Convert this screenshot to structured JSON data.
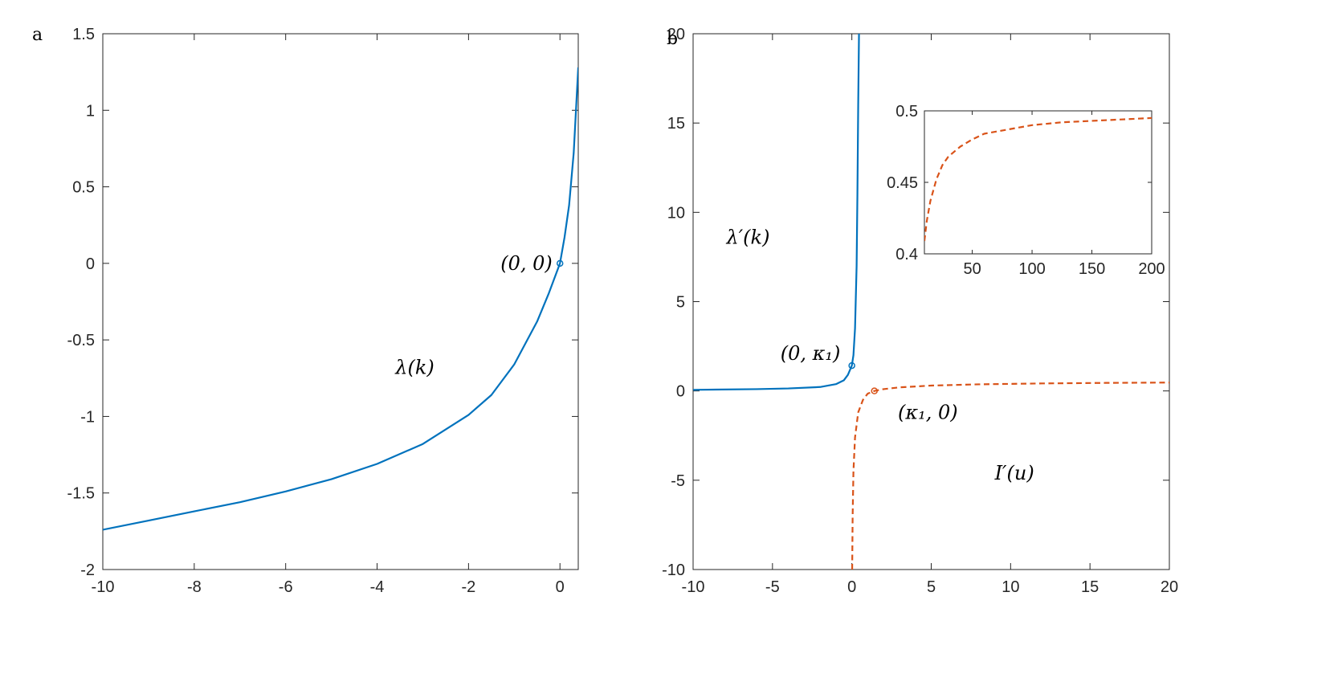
{
  "colors": {
    "blue": "#0072bd",
    "red": "#d95319",
    "axis": "#262626"
  },
  "chart_data": [
    {
      "panel": "a",
      "type": "line",
      "xlim": [
        -10,
        0.4
      ],
      "ylim": [
        -2,
        1.5
      ],
      "xticks": [
        -10,
        -8,
        -6,
        -4,
        -2,
        0
      ],
      "yticks": [
        -2,
        -1.5,
        -1,
        -0.5,
        0,
        0.5,
        1,
        1.5
      ],
      "series": [
        {
          "style": "solid",
          "color": "#0072bd",
          "x": [
            -10,
            -9,
            -8,
            -7,
            -6,
            -5,
            -4,
            -3,
            -2,
            -1.5,
            -1,
            -0.5,
            -0.25,
            0,
            0.1,
            0.2,
            0.3,
            0.4
          ],
          "y": [
            -1.74,
            -1.68,
            -1.62,
            -1.56,
            -1.49,
            -1.41,
            -1.31,
            -1.18,
            -0.99,
            -0.86,
            -0.66,
            -0.38,
            -0.2,
            0,
            0.17,
            0.38,
            0.72,
            1.28
          ]
        }
      ],
      "markers": [
        {
          "x": 0,
          "y": 0,
          "color": "#0072bd"
        }
      ],
      "annotations": [
        {
          "text": "(0, 0)",
          "x": -1.3,
          "y": 0
        },
        {
          "text": "λ(k)",
          "x": -3.6,
          "y": -0.68
        }
      ]
    },
    {
      "panel": "b",
      "type": "line",
      "xlim": [
        -10,
        20
      ],
      "ylim": [
        -10,
        20
      ],
      "xticks": [
        -10,
        -5,
        0,
        5,
        10,
        15,
        20
      ],
      "yticks": [
        -10,
        -5,
        0,
        5,
        10,
        15,
        20
      ],
      "series": [
        {
          "style": "solid",
          "color": "#0072bd",
          "x": [
            -10,
            -6,
            -4,
            -2,
            -1,
            -0.5,
            -0.25,
            0,
            0.1,
            0.2,
            0.3,
            0.35,
            0.4,
            0.45
          ],
          "y": [
            0.06,
            0.1,
            0.14,
            0.22,
            0.38,
            0.6,
            0.9,
            1.42,
            2.0,
            3.5,
            7,
            11,
            16,
            20
          ]
        },
        {
          "style": "dashed",
          "color": "#d95319",
          "x": [
            0.02,
            0.05,
            0.1,
            0.2,
            0.4,
            0.7,
            1.0,
            1.42,
            2,
            3,
            5,
            8,
            12,
            16,
            20
          ],
          "y": [
            -10,
            -7,
            -4.5,
            -2.6,
            -1.2,
            -0.5,
            -0.15,
            0,
            0.1,
            0.2,
            0.3,
            0.37,
            0.42,
            0.45,
            0.47
          ]
        }
      ],
      "markers": [
        {
          "x": 0,
          "y": 1.42,
          "color": "#0072bd"
        },
        {
          "x": 1.42,
          "y": 0,
          "color": "#d95319"
        }
      ],
      "annotations": [
        {
          "text": "λ′(k)",
          "x": -7.9,
          "y": 8.6
        },
        {
          "text": "(0, κ₁)",
          "x": -4.5,
          "y": 2.1
        },
        {
          "text": "(κ₁, 0)",
          "x": 2.9,
          "y": -1.2
        },
        {
          "text": "I′(u)",
          "x": 9,
          "y": -4.6
        }
      ]
    },
    {
      "panel": "b-inset",
      "type": "line",
      "xlim": [
        10,
        200
      ],
      "ylim": [
        0.4,
        0.5
      ],
      "xticks": [
        50,
        100,
        150,
        200
      ],
      "yticks": [
        0.4,
        0.45,
        0.5
      ],
      "series": [
        {
          "style": "dashed",
          "color": "#d95319",
          "x": [
            10,
            12,
            15,
            20,
            25,
            30,
            40,
            50,
            60,
            80,
            100,
            125,
            150,
            175,
            200
          ],
          "y": [
            0.409,
            0.423,
            0.437,
            0.452,
            0.462,
            0.468,
            0.475,
            0.48,
            0.484,
            0.487,
            0.49,
            0.492,
            0.493,
            0.494,
            0.495
          ]
        }
      ],
      "markers": [],
      "annotations": []
    }
  ],
  "panel_labels": {
    "a": "a",
    "b": "b"
  }
}
